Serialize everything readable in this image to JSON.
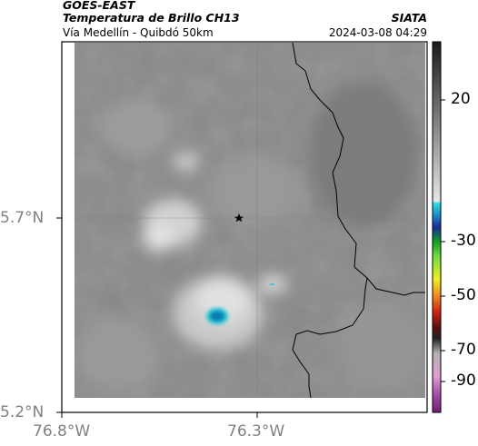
{
  "header": {
    "satellite": "GOES-EAST",
    "product": "Temperatura de Brillo CH13",
    "route": "Vía Medellín - Quibdó 50km",
    "org": "SIATA",
    "datetime": "2024-03-08 04:29"
  },
  "axes": {
    "y_ticks": [
      "5.7°N",
      "5.2°N"
    ],
    "x_ticks": [
      "76.8°W",
      "76.3°W"
    ]
  },
  "colorbar": {
    "ticks": [
      "20",
      "-30",
      "-50",
      "-70",
      "-90"
    ]
  },
  "colors": {
    "cloud_cold": "#0a7cb0",
    "cloud_cyan": "#1fc8d6",
    "frame": "#000000"
  },
  "map": {
    "marker_icon": "star-icon"
  }
}
